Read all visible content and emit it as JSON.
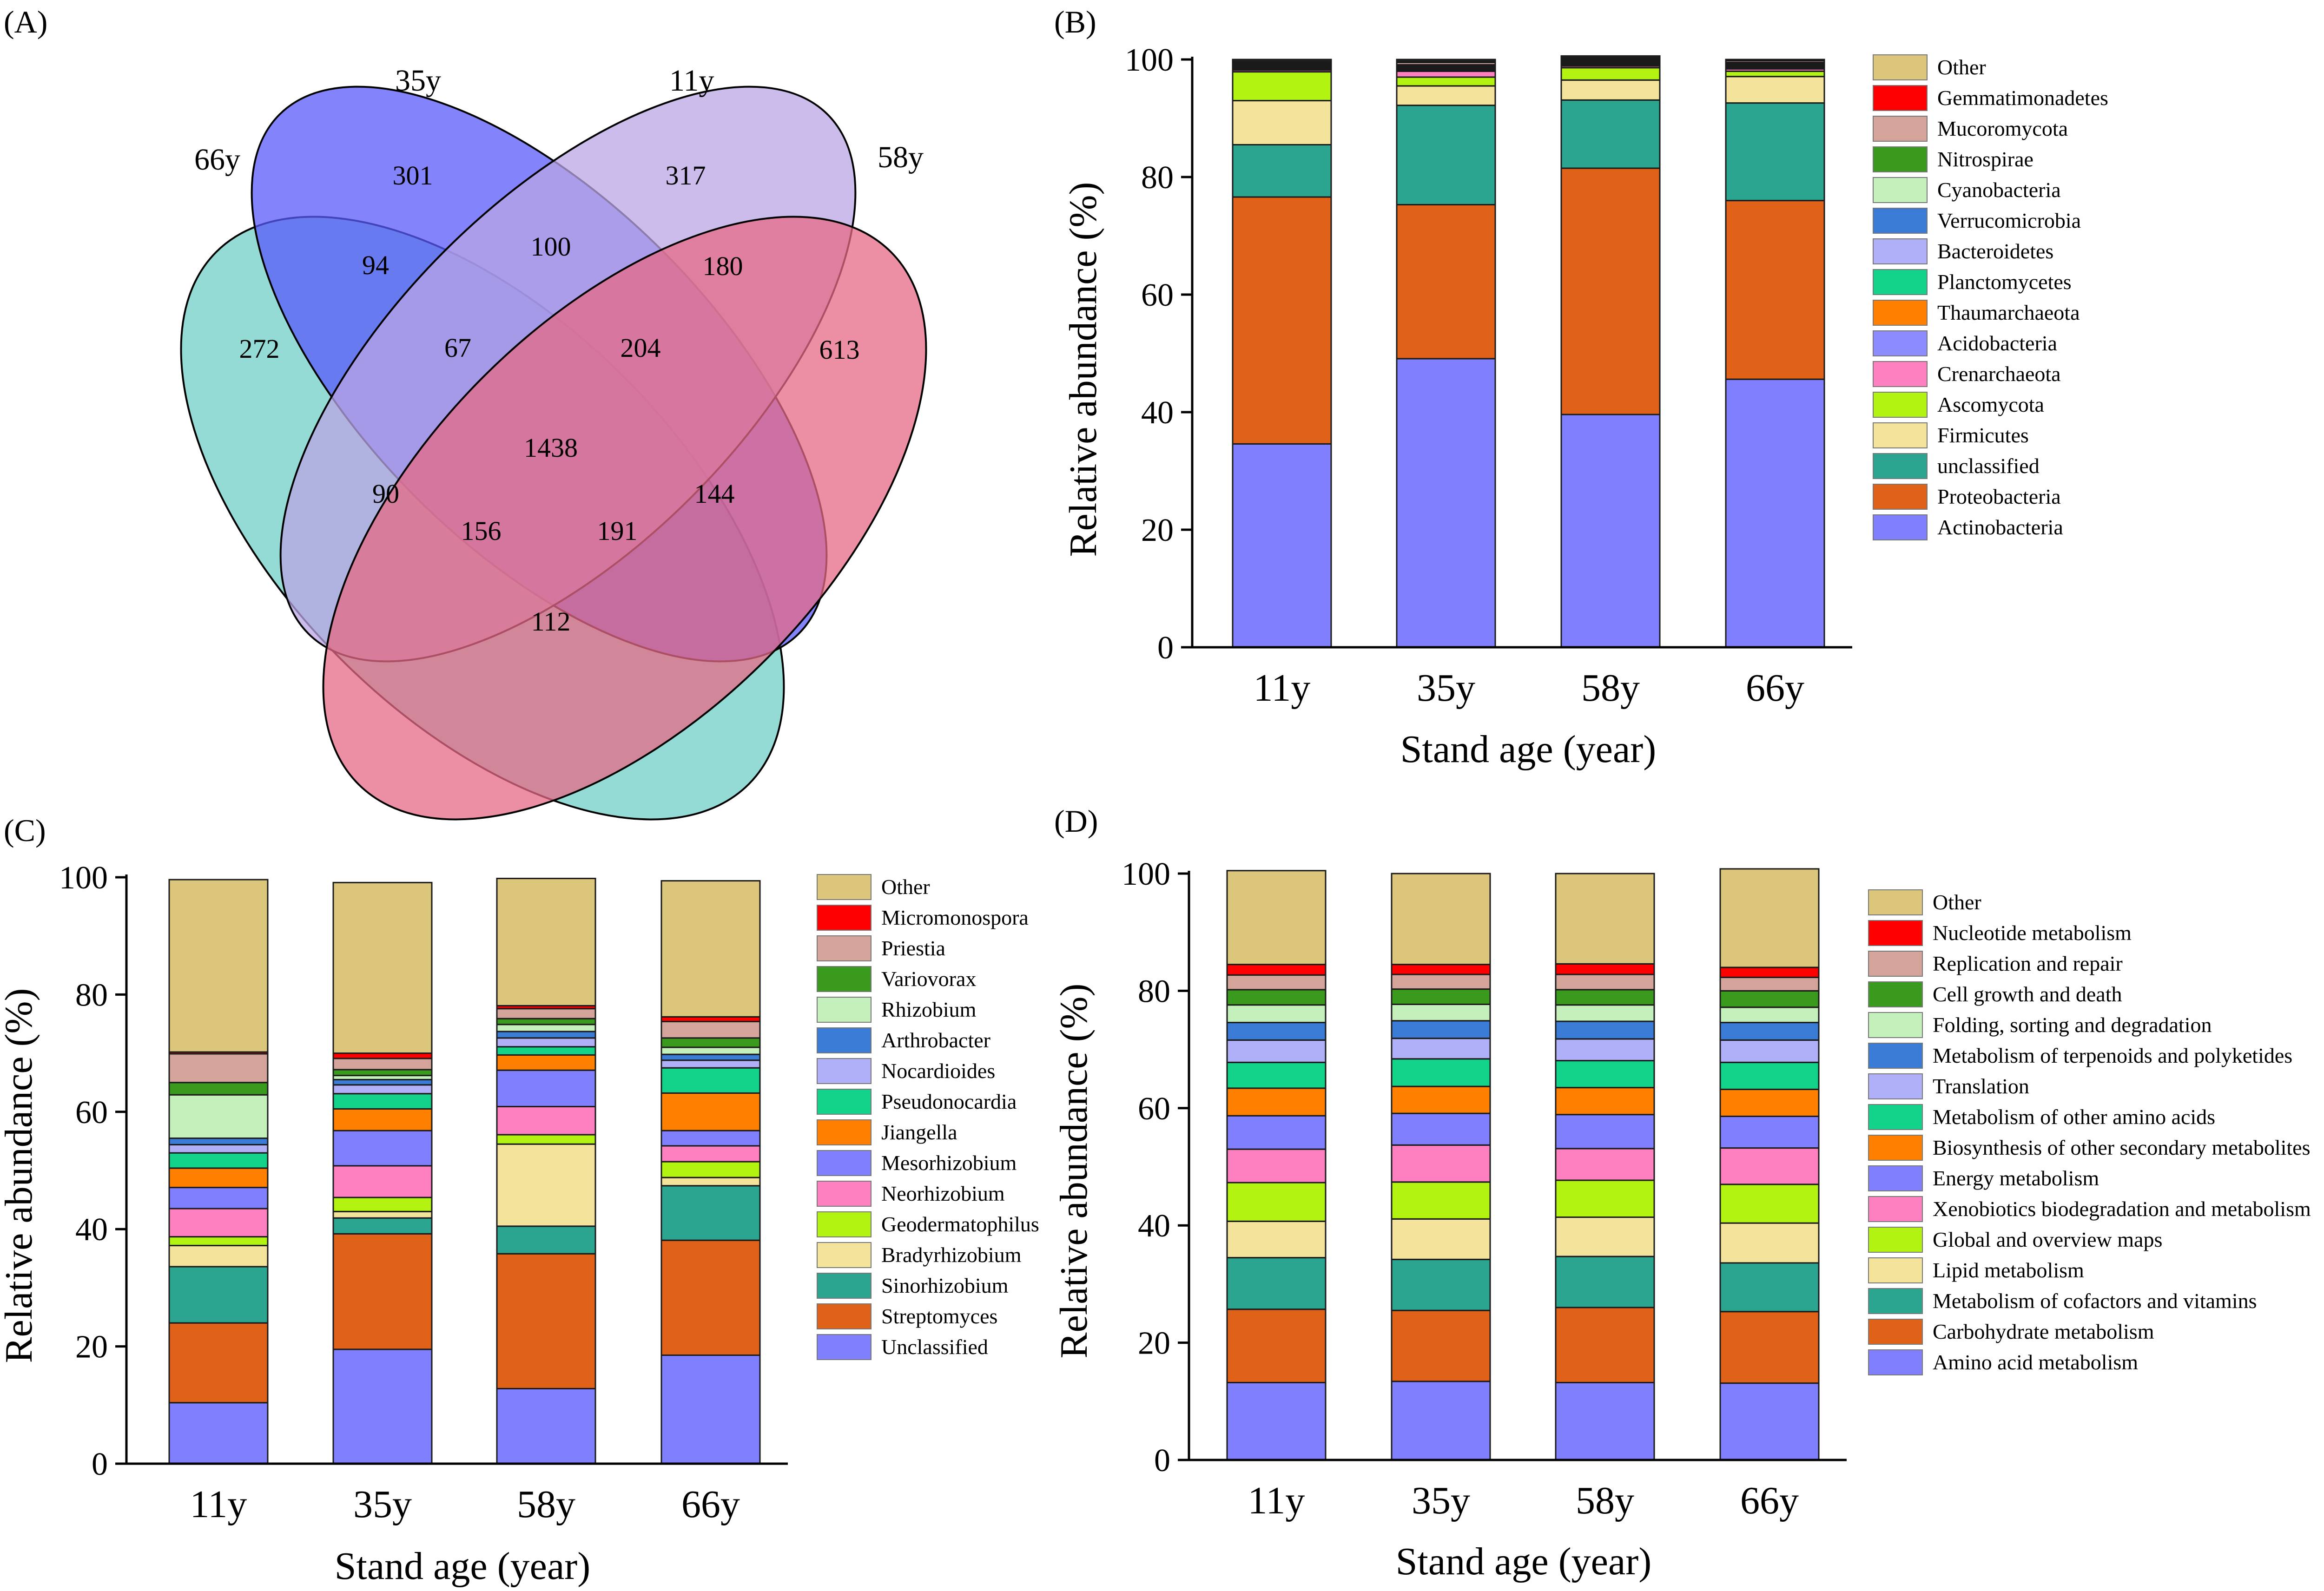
{
  "chart_data": [
    {
      "panel": "(A)",
      "type": "venn",
      "sets": [
        {
          "name": "66y",
          "color": "#6fcfc6"
        },
        {
          "name": "35y",
          "color": "#5a5afa"
        },
        {
          "name": "11y",
          "color": "#b9a6e4"
        },
        {
          "name": "58y",
          "color": "#e66a85"
        }
      ],
      "regions": [
        {
          "sets": [
            "35y"
          ],
          "value": "301"
        },
        {
          "sets": [
            "11y"
          ],
          "value": "317"
        },
        {
          "sets": [
            "66y"
          ],
          "value": "272"
        },
        {
          "sets": [
            "58y"
          ],
          "value": "613"
        },
        {
          "sets": [
            "66y",
            "35y"
          ],
          "value": "94"
        },
        {
          "sets": [
            "35y",
            "11y"
          ],
          "value": "100"
        },
        {
          "sets": [
            "11y",
            "58y"
          ],
          "value": "180"
        },
        {
          "sets": [
            "66y",
            "35y",
            "11y"
          ],
          "value": "67"
        },
        {
          "sets": [
            "35y",
            "11y",
            "58y"
          ],
          "value": "204"
        },
        {
          "sets": [
            "66y",
            "35y",
            "11y",
            "58y"
          ],
          "value": "1438"
        },
        {
          "sets": [
            "66y",
            "11y"
          ],
          "value": "90"
        },
        {
          "sets": [
            "35y",
            "58y"
          ],
          "value": "144"
        },
        {
          "sets": [
            "66y",
            "11y",
            "58y"
          ],
          "value": "156"
        },
        {
          "sets": [
            "66y",
            "35y",
            "58y"
          ],
          "value": "191"
        },
        {
          "sets": [
            "66y",
            "58y"
          ],
          "value": "112"
        }
      ]
    },
    {
      "panel": "(B)",
      "type": "bar",
      "stacked": true,
      "categories": [
        "11y",
        "35y",
        "58y",
        "66y"
      ],
      "ylabel": "Relative abundance (%)",
      "xlabel": "Stand age (year)",
      "ylim": [
        0,
        100
      ],
      "yticks": [
        0,
        20,
        40,
        60,
        80,
        100
      ],
      "series": [
        {
          "name": "Actinobacteria",
          "color": "#8080ff",
          "values": [
            34.6,
            49.1,
            39.6,
            45.6
          ]
        },
        {
          "name": "Proteobacteria",
          "color": "#e06218",
          "values": [
            42.0,
            26.2,
            41.9,
            30.4
          ]
        },
        {
          "name": "unclassified",
          "color": "#2ba58f",
          "values": [
            8.9,
            16.9,
            11.6,
            16.6
          ]
        },
        {
          "name": "Firmicutes",
          "color": "#f3e39b",
          "values": [
            7.5,
            3.3,
            3.4,
            4.5
          ]
        },
        {
          "name": "Ascomycota",
          "color": "#b3f311",
          "values": [
            4.9,
            1.5,
            2.1,
            0.9
          ]
        },
        {
          "name": "Crenarchaeota",
          "color": "#ff80c0",
          "values": [
            0.3,
            1.0,
            0.3,
            0.4
          ]
        },
        {
          "name": "Acidobacteria",
          "color": "#8c8cff",
          "values": [
            0.2,
            0.2,
            0.2,
            0.2
          ]
        },
        {
          "name": "Thaumarchaeota",
          "color": "#ff8000",
          "values": [
            0.1,
            0.1,
            0.1,
            0.1
          ]
        },
        {
          "name": "Planctomycetes",
          "color": "#13d38a",
          "values": [
            0.1,
            0.1,
            0.1,
            0.1
          ]
        },
        {
          "name": "Bacteroidetes",
          "color": "#b0b0f8",
          "values": [
            0.2,
            0.2,
            0.2,
            0.2
          ]
        },
        {
          "name": "Verrucomicrobia",
          "color": "#3a7bd5",
          "values": [
            0.2,
            0.2,
            0.2,
            0.2
          ]
        },
        {
          "name": "Cyanobacteria",
          "color": "#c4f0bc",
          "values": [
            0.1,
            0.1,
            0.1,
            0.1
          ]
        },
        {
          "name": "Nitrospirae",
          "color": "#3a9a1e",
          "values": [
            0.2,
            0.2,
            0.2,
            0.2
          ]
        },
        {
          "name": "Mucoromycota",
          "color": "#d4a49b",
          "values": [
            0.2,
            0.4,
            0.2,
            0.3
          ]
        },
        {
          "name": "Gemmatimonadetes",
          "color": "#ff0000",
          "values": [
            0.1,
            0.1,
            0.1,
            0.1
          ]
        },
        {
          "name": "Other",
          "color": "#222222",
          "values": [
            0.4,
            0.4,
            0.3,
            0.1
          ]
        }
      ],
      "legend_series": [
        {
          "name": "Other",
          "color": "#dcc67b"
        },
        {
          "name": "Gemmatimonadetes",
          "color": "#ff0000"
        },
        {
          "name": "Mucoromycota",
          "color": "#d4a49b"
        },
        {
          "name": "Nitrospirae",
          "color": "#3a9a1e"
        },
        {
          "name": "Cyanobacteria",
          "color": "#c4f0bc"
        },
        {
          "name": "Verrucomicrobia",
          "color": "#3a7bd5"
        },
        {
          "name": "Bacteroidetes",
          "color": "#b0b0f8"
        },
        {
          "name": "Planctomycetes",
          "color": "#13d38a"
        },
        {
          "name": "Thaumarchaeota",
          "color": "#ff8000"
        },
        {
          "name": "Acidobacteria",
          "color": "#8c8cff"
        },
        {
          "name": "Crenarchaeota",
          "color": "#ff80c0"
        },
        {
          "name": "Ascomycota",
          "color": "#b3f311"
        },
        {
          "name": "Firmicutes",
          "color": "#f3e39b"
        },
        {
          "name": "unclassified",
          "color": "#2ba58f"
        },
        {
          "name": "Proteobacteria",
          "color": "#e06218"
        },
        {
          "name": "Actinobacteria",
          "color": "#8080ff"
        }
      ]
    },
    {
      "panel": "(C)",
      "type": "bar",
      "stacked": true,
      "categories": [
        "11y",
        "35y",
        "58y",
        "66y"
      ],
      "ylabel": "Relative abundance (%)",
      "xlabel": "Stand age (year)",
      "ylim": [
        0,
        100
      ],
      "yticks": [
        0,
        20,
        40,
        60,
        80,
        100
      ],
      "series": [
        {
          "name": "Unclassified",
          "color": "#8080ff",
          "values": [
            10.4,
            19.5,
            12.8,
            18.5
          ]
        },
        {
          "name": "Streptomyces",
          "color": "#e06218",
          "values": [
            13.6,
            19.7,
            23.0,
            19.6
          ]
        },
        {
          "name": "Sinorhizobium",
          "color": "#2ba58f",
          "values": [
            9.6,
            2.7,
            4.7,
            9.3
          ]
        },
        {
          "name": "Bradyrhizobium",
          "color": "#f3e39b",
          "values": [
            3.6,
            1.1,
            14.0,
            1.4
          ]
        },
        {
          "name": "Geodermatophilus",
          "color": "#b3f311",
          "values": [
            1.5,
            2.4,
            1.6,
            2.7
          ]
        },
        {
          "name": "Neorhizobium",
          "color": "#ff80c0",
          "values": [
            4.8,
            5.4,
            4.8,
            2.7
          ]
        },
        {
          "name": "Mesorhizobium",
          "color": "#8080ff",
          "values": [
            3.6,
            6.0,
            6.2,
            2.6
          ]
        },
        {
          "name": "Jiangella",
          "color": "#ff8000",
          "values": [
            3.3,
            3.7,
            2.6,
            6.4
          ]
        },
        {
          "name": "Pseudonocardia",
          "color": "#13d38a",
          "values": [
            2.6,
            2.6,
            1.4,
            4.3
          ]
        },
        {
          "name": "Nocardioides",
          "color": "#b0b0f8",
          "values": [
            1.4,
            1.5,
            1.5,
            1.3
          ]
        },
        {
          "name": "Arthrobacter",
          "color": "#3a7bd5",
          "values": [
            1.1,
            0.9,
            1.1,
            1.0
          ]
        },
        {
          "name": "Rhizobium",
          "color": "#c4f0bc",
          "values": [
            7.4,
            0.7,
            1.2,
            1.2
          ]
        },
        {
          "name": "Variovorax",
          "color": "#3a9a1e",
          "values": [
            2.1,
            1.0,
            1.0,
            1.6
          ]
        },
        {
          "name": "Priestia",
          "color": "#d4a49b",
          "values": [
            4.9,
            1.9,
            1.7,
            2.8
          ]
        },
        {
          "name": "Micromonospora",
          "color": "#ff0000",
          "values": [
            0.3,
            0.9,
            0.5,
            0.8
          ]
        },
        {
          "name": "Other",
          "color": "#dcc67b",
          "values": [
            29.4,
            29.1,
            21.7,
            23.2
          ]
        }
      ]
    },
    {
      "panel": "(D)",
      "type": "bar",
      "stacked": true,
      "categories": [
        "11y",
        "35y",
        "58y",
        "66y"
      ],
      "ylabel": "Relative abundance (%)",
      "xlabel": "Stand age (year)",
      "ylim": [
        0,
        100
      ],
      "yticks": [
        0,
        20,
        40,
        60,
        80,
        100
      ],
      "series": [
        {
          "name": "Amino acid metabolism",
          "color": "#8080ff",
          "values": [
            13.2,
            13.4,
            13.2,
            13.1
          ]
        },
        {
          "name": "Carbohydrate metabolism",
          "color": "#e06218",
          "values": [
            12.5,
            12.1,
            12.8,
            12.2
          ]
        },
        {
          "name": "Metabolism of cofactors and vitamins",
          "color": "#2ba58f",
          "values": [
            8.8,
            8.7,
            8.7,
            8.3
          ]
        },
        {
          "name": "Lipid metabolism",
          "color": "#f3e39b",
          "values": [
            6.2,
            6.9,
            6.7,
            6.8
          ]
        },
        {
          "name": "Global and overview maps",
          "color": "#b3f311",
          "values": [
            6.6,
            6.3,
            6.3,
            6.6
          ]
        },
        {
          "name": "Xenobiotics biodegradation and metabolism",
          "color": "#ff80c0",
          "values": [
            5.7,
            6.3,
            5.4,
            6.2
          ]
        },
        {
          "name": "Energy metabolism",
          "color": "#8080ff",
          "values": [
            5.7,
            5.4,
            5.8,
            5.4
          ]
        },
        {
          "name": "Biosynthesis of other secondary metabolites",
          "color": "#ff8000",
          "values": [
            4.7,
            4.6,
            4.6,
            4.6
          ]
        },
        {
          "name": "Metabolism of other amino acids",
          "color": "#13d38a",
          "values": [
            4.4,
            4.7,
            4.6,
            4.6
          ]
        },
        {
          "name": "Translation",
          "color": "#b0b0f8",
          "values": [
            3.8,
            3.5,
            3.7,
            3.8
          ]
        },
        {
          "name": "Metabolism of terpenoids and polyketides",
          "color": "#3a7bd5",
          "values": [
            3.0,
            3.0,
            3.0,
            3.0
          ]
        },
        {
          "name": "Folding, sorting and degradation",
          "color": "#c4f0bc",
          "values": [
            3.0,
            2.8,
            2.8,
            2.6
          ]
        },
        {
          "name": "Cell growth and death",
          "color": "#3a9a1e",
          "values": [
            2.6,
            2.6,
            2.6,
            2.8
          ]
        },
        {
          "name": "Replication and repair",
          "color": "#d4a49b",
          "values": [
            2.5,
            2.5,
            2.6,
            2.3
          ]
        },
        {
          "name": "Nucleotide metabolism",
          "color": "#ff0000",
          "values": [
            1.8,
            1.7,
            1.8,
            1.7
          ]
        },
        {
          "name": "Other",
          "color": "#dcc67b",
          "values": [
            16.0,
            15.5,
            15.4,
            16.8
          ]
        }
      ]
    }
  ]
}
